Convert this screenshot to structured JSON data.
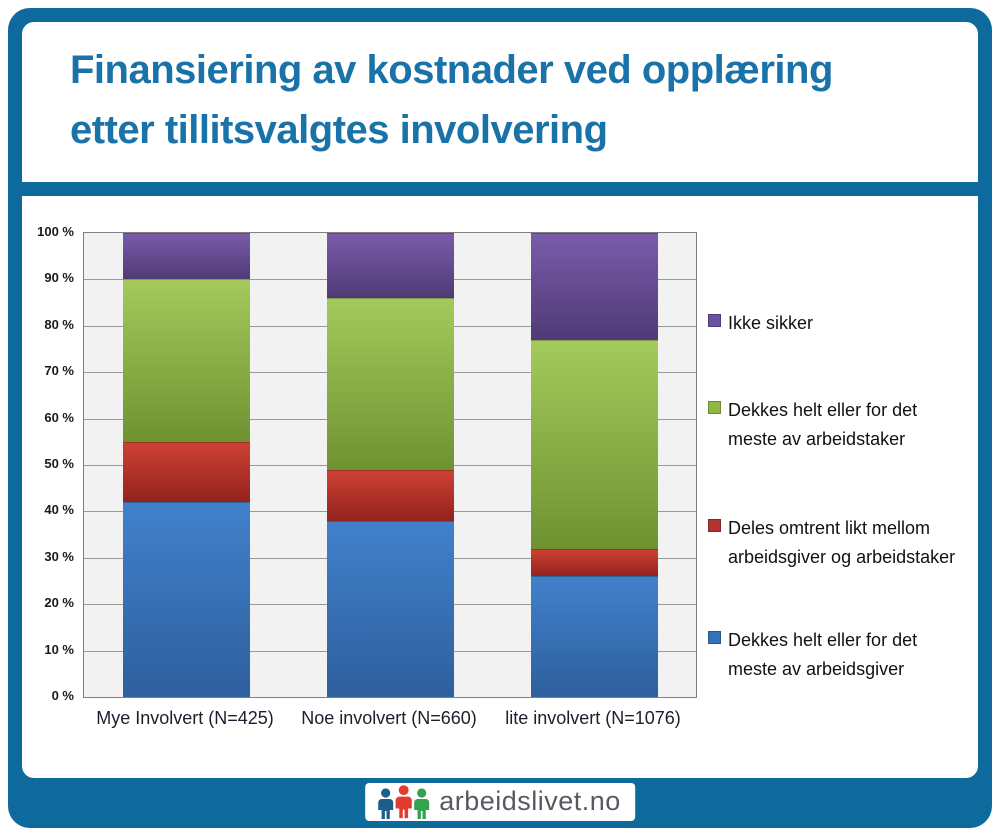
{
  "title": {
    "line1": "Finansiering av kostnader ved opplæring",
    "line2": "etter tillitsvalgtes involvering"
  },
  "colors": {
    "frame_blue": "#0e6a9c",
    "title_text": "#1a73a8",
    "plot_background": "#f2f2f2",
    "gridline": "#9a9a9a",
    "plot_border": "#808080"
  },
  "chart_data": {
    "type": "bar",
    "stacked": true,
    "title": "Finansiering av kostnader ved opplæring etter tillitsvalgtes involvering",
    "xlabel": "",
    "ylabel": "",
    "categories": [
      "Mye Involvert (N=425)",
      "Noe involvert (N=660)",
      "lite involvert (N=1076)"
    ],
    "series": [
      {
        "name": "Dekkes helt eller for det meste av arbeidsgiver",
        "values": [
          42,
          38,
          26
        ],
        "color_top": "#4181cb",
        "color_bottom": "#2e5f9e",
        "legend_color": "#3273b8"
      },
      {
        "name": "Deles omtrent likt mellom arbeidsgiver og arbeidstaker",
        "values": [
          13,
          11,
          6
        ],
        "color_top": "#cf4134",
        "color_bottom": "#92231d",
        "legend_color": "#b23431"
      },
      {
        "name": "Dekkes helt eller for det meste av arbeidstaker",
        "values": [
          35,
          37,
          45
        ],
        "color_top": "#a4ca5c",
        "color_bottom": "#6f9231",
        "legend_color": "#8fb843"
      },
      {
        "name": "Ikke sikker",
        "values": [
          10,
          14,
          23
        ],
        "color_top": "#7a5cab",
        "color_bottom": "#503a76",
        "legend_color": "#6d50a1"
      }
    ],
    "ylim": [
      0,
      100
    ],
    "yticks": [
      "0 %",
      "10 %",
      "20 %",
      "30 %",
      "40 %",
      "50 %",
      "60 %",
      "70 %",
      "80 %",
      "90 %",
      "100 %"
    ],
    "grid": true,
    "legend_position": "right"
  },
  "legend": {
    "items": [
      {
        "label": "Ikke sikker",
        "color": "#6d50a1"
      },
      {
        "label": "Dekkes helt eller for det\nmeste av arbeidstaker",
        "color": "#8fb843"
      },
      {
        "label": "Deles omtrent likt mellom\narbeidsgiver og arbeidstaker",
        "color": "#b23431"
      },
      {
        "label": "Dekkes helt eller for det\nmeste av arbeidsgiver",
        "color": "#3273b8"
      }
    ]
  },
  "footer": {
    "logo_text": "arbeidslivet.no",
    "logo_icon": "three-people-icon",
    "logo_icon_colors": [
      "#1c5f8c",
      "#e23b30",
      "#33a34d"
    ]
  }
}
